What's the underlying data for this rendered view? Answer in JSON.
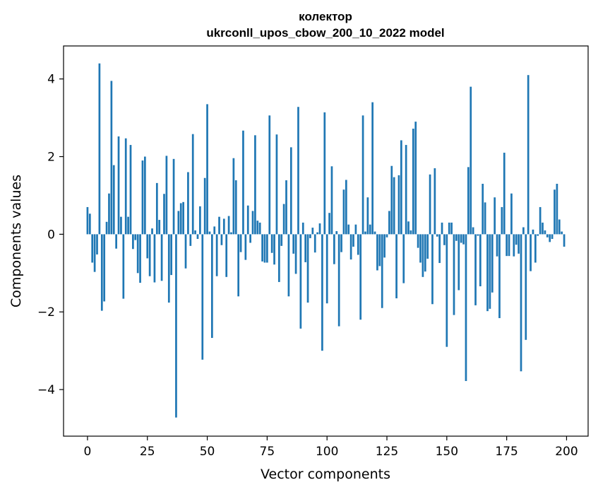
{
  "chart_data": {
    "type": "bar",
    "title": "колектор",
    "subtitle": "ukrconll_upos_cbow_200_10_2022 model",
    "xlabel": "Vector components",
    "ylabel": "Components values",
    "xlim": [
      -10,
      209
    ],
    "ylim": [
      -5.2,
      4.85
    ],
    "xticks": [
      0,
      25,
      50,
      75,
      100,
      125,
      150,
      175,
      200
    ],
    "yticks": [
      -4,
      -2,
      0,
      2,
      4
    ],
    "ytick_labels": [
      "−4",
      "−2",
      "0",
      "2",
      "4"
    ],
    "grid": false,
    "bar_color": "#1f77b4",
    "x": [
      0,
      1,
      2,
      3,
      4,
      5,
      6,
      7,
      8,
      9,
      10,
      11,
      12,
      13,
      14,
      15,
      16,
      17,
      18,
      19,
      20,
      21,
      22,
      23,
      24,
      25,
      26,
      27,
      28,
      29,
      30,
      31,
      32,
      33,
      34,
      35,
      36,
      37,
      38,
      39,
      40,
      41,
      42,
      43,
      44,
      45,
      46,
      47,
      48,
      49,
      50,
      51,
      52,
      53,
      54,
      55,
      56,
      57,
      58,
      59,
      60,
      61,
      62,
      63,
      64,
      65,
      66,
      67,
      68,
      69,
      70,
      71,
      72,
      73,
      74,
      75,
      76,
      77,
      78,
      79,
      80,
      81,
      82,
      83,
      84,
      85,
      86,
      87,
      88,
      89,
      90,
      91,
      92,
      93,
      94,
      95,
      96,
      97,
      98,
      99,
      100,
      101,
      102,
      103,
      104,
      105,
      106,
      107,
      108,
      109,
      110,
      111,
      112,
      113,
      114,
      115,
      116,
      117,
      118,
      119,
      120,
      121,
      122,
      123,
      124,
      125,
      126,
      127,
      128,
      129,
      130,
      131,
      132,
      133,
      134,
      135,
      136,
      137,
      138,
      139,
      140,
      141,
      142,
      143,
      144,
      145,
      146,
      147,
      148,
      149,
      150,
      151,
      152,
      153,
      154,
      155,
      156,
      157,
      158,
      159,
      160,
      161,
      162,
      163,
      164,
      165,
      166,
      167,
      168,
      169,
      170,
      171,
      172,
      173,
      174,
      175,
      176,
      177,
      178,
      179,
      180,
      181,
      182,
      183,
      184,
      185,
      186,
      187,
      188,
      189,
      190,
      191,
      192,
      193,
      194,
      195,
      196,
      197,
      198,
      199
    ],
    "values": [
      0.7,
      0.53,
      -0.73,
      -0.97,
      -0.52,
      4.4,
      -1.97,
      -1.73,
      0.32,
      1.05,
      3.95,
      1.78,
      -0.37,
      2.52,
      0.45,
      -1.66,
      2.47,
      0.45,
      2.3,
      -0.38,
      -0.15,
      -1.0,
      -1.25,
      1.9,
      2.0,
      -0.62,
      -1.08,
      0.15,
      -1.24,
      1.32,
      0.37,
      -1.2,
      1.04,
      2.02,
      -1.76,
      -1.05,
      1.94,
      -4.72,
      0.6,
      0.8,
      0.83,
      -0.88,
      1.6,
      -0.3,
      2.58,
      0.1,
      -0.12,
      0.72,
      -3.23,
      1.45,
      3.35,
      0.07,
      -2.67,
      0.2,
      -1.08,
      0.45,
      -0.28,
      0.4,
      -1.1,
      0.47,
      0.05,
      1.96,
      1.39,
      -1.6,
      -0.46,
      2.67,
      -0.66,
      0.74,
      -0.22,
      0.6,
      2.55,
      0.35,
      0.3,
      -0.7,
      -0.73,
      -0.73,
      3.06,
      -0.48,
      -0.78,
      2.57,
      -1.23,
      -0.3,
      0.78,
      1.39,
      -1.6,
      2.24,
      -0.5,
      -1.02,
      3.28,
      -2.43,
      0.3,
      -0.72,
      -1.76,
      -0.1,
      0.17,
      -0.47,
      0.05,
      0.28,
      -3.0,
      3.14,
      -1.78,
      0.55,
      1.75,
      -0.77,
      0.08,
      -2.37,
      -0.46,
      1.15,
      1.4,
      0.25,
      -0.65,
      -0.32,
      0.25,
      -0.53,
      -2.2,
      3.06,
      0.07,
      0.95,
      0.25,
      3.4,
      0.07,
      -0.93,
      -0.82,
      -1.9,
      -0.6,
      -0.08,
      0.6,
      1.76,
      1.47,
      -1.65,
      1.52,
      2.42,
      -1.26,
      2.3,
      0.33,
      0.1,
      2.72,
      2.9,
      -0.35,
      -0.73,
      -1.1,
      -0.96,
      -0.63,
      1.54,
      -1.8,
      1.7,
      -0.06,
      -0.74,
      0.3,
      -0.28,
      -2.9,
      0.3,
      0.3,
      -2.08,
      -0.17,
      -1.44,
      -0.22,
      -0.26,
      -3.78,
      1.73,
      3.8,
      0.18,
      -1.83,
      -0.04,
      -1.34,
      1.3,
      0.82,
      -1.98,
      -1.92,
      -1.5,
      0.95,
      -0.57,
      -2.16,
      0.7,
      2.1,
      -0.56,
      -0.56,
      1.05,
      -0.57,
      -0.27,
      -0.5,
      -3.53,
      0.18,
      -2.72,
      4.1,
      -0.95,
      0.12,
      -0.73,
      -0.04,
      0.7,
      0.3,
      0.1,
      -0.08,
      -0.2,
      -0.12,
      1.15,
      1.3,
      0.38,
      0.07,
      -0.32
    ]
  }
}
